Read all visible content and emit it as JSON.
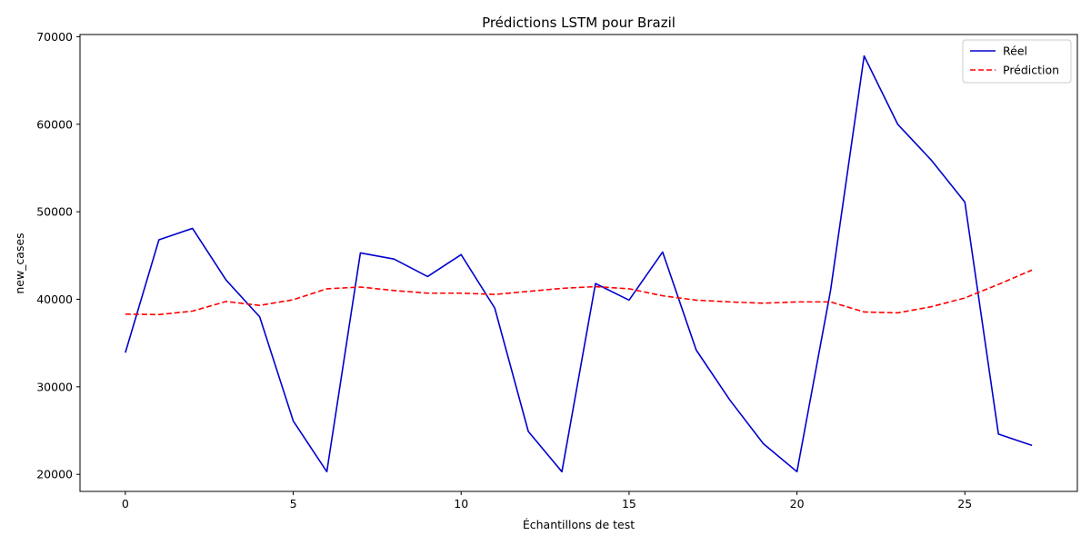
{
  "chart_data": {
    "type": "line",
    "title": "Prédictions LSTM pour Brazil",
    "xlabel": "Échantillons de test",
    "ylabel": "new_cases",
    "xlim": [
      -1.35,
      28.35
    ],
    "ylim": [
      18050,
      70250
    ],
    "xticks": [
      0,
      5,
      10,
      15,
      20,
      25
    ],
    "yticks": [
      20000,
      30000,
      40000,
      50000,
      60000,
      70000
    ],
    "grid": false,
    "legend_position": "top-right",
    "x": [
      0,
      1,
      2,
      3,
      4,
      5,
      6,
      7,
      8,
      9,
      10,
      11,
      12,
      13,
      14,
      15,
      16,
      17,
      18,
      19,
      20,
      21,
      22,
      23,
      24,
      25,
      26,
      27
    ],
    "series": [
      {
        "name": "Réel",
        "color": "#0000cc",
        "style": "solid",
        "values": [
          33900,
          46800,
          48100,
          42200,
          38000,
          26100,
          20300,
          45300,
          44600,
          42600,
          45100,
          39000,
          24900,
          20300,
          41800,
          39900,
          45400,
          34200,
          28500,
          23500,
          20300,
          41000,
          67800,
          60000,
          55900,
          51100,
          24600,
          23300
        ]
      },
      {
        "name": "Prédiction",
        "color": "#ff0000",
        "style": "dashed",
        "values": [
          38300,
          38250,
          38650,
          39750,
          39300,
          39950,
          41200,
          41400,
          41000,
          40700,
          40700,
          40550,
          40900,
          41250,
          41450,
          41200,
          40400,
          39900,
          39700,
          39550,
          39700,
          39700,
          38550,
          38450,
          39150,
          40150,
          41700,
          43350
        ]
      }
    ]
  }
}
